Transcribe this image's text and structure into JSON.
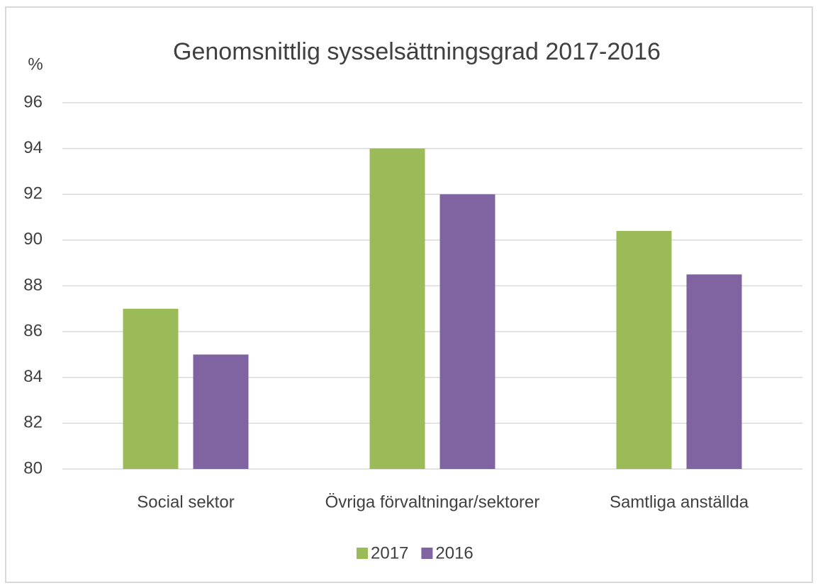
{
  "chart_data": {
    "type": "bar",
    "title": "Genomsnittlig sysselsättningsgrad 2017-2016",
    "y_label": "%",
    "categories": [
      "Social sektor",
      "Övriga förvaltningar/sektorer",
      "Samtliga anställda"
    ],
    "series": [
      {
        "name": "2017",
        "color": "#9bbb59",
        "values": [
          87,
          94,
          90.4
        ]
      },
      {
        "name": "2016",
        "color": "#8064a2",
        "values": [
          85,
          92,
          88.5
        ]
      }
    ],
    "ylim": [
      80,
      96
    ],
    "yticks": [
      80,
      82,
      84,
      86,
      88,
      90,
      92,
      94,
      96
    ],
    "grid": true,
    "legend": "bottom"
  }
}
